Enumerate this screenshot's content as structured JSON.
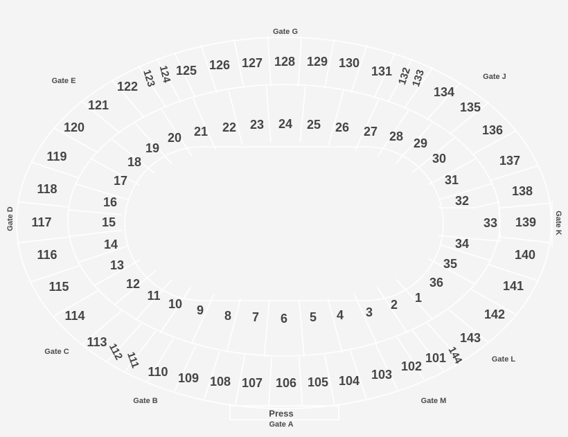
{
  "colors": {
    "background": "#f4f4f4",
    "lines": "#ffffff",
    "text": "#454545"
  },
  "gates": {
    "g": "Gate G",
    "j": "Gate J",
    "e": "Gate E",
    "d": "Gate D",
    "k": "Gate K",
    "l": "Gate L",
    "m": "Gate M",
    "c": "Gate C",
    "b": "Gate B",
    "press": "Press",
    "a": "Gate A"
  },
  "inner_sections": [
    "1",
    "2",
    "3",
    "4",
    "5",
    "6",
    "7",
    "8",
    "9",
    "10",
    "11",
    "12",
    "13",
    "14",
    "15",
    "16",
    "17",
    "18",
    "19",
    "20",
    "21",
    "22",
    "23",
    "24",
    "25",
    "26",
    "27",
    "28",
    "29",
    "30",
    "31",
    "32",
    "33",
    "34",
    "35",
    "36"
  ],
  "outer_sections": [
    "101",
    "102",
    "103",
    "104",
    "105",
    "106",
    "107",
    "108",
    "109",
    "110",
    "111",
    "112",
    "113",
    "114",
    "115",
    "116",
    "117",
    "118",
    "119",
    "120",
    "121",
    "122",
    "123",
    "124",
    "125",
    "126",
    "127",
    "128",
    "129",
    "130",
    "131",
    "132",
    "133",
    "134",
    "135",
    "136",
    "137",
    "138",
    "139",
    "140",
    "141",
    "142",
    "143",
    "144"
  ]
}
